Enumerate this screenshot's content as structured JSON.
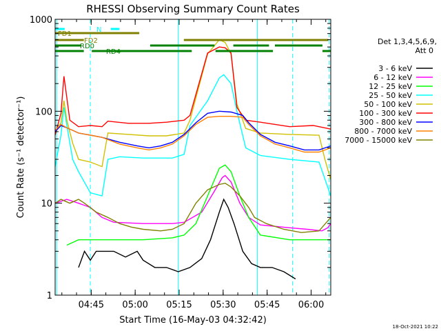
{
  "chart_data": {
    "type": "line",
    "title": "RHESSI Observing Summary Count Rates",
    "xlabel": "Start Time (16-May-03 04:32:42)",
    "ylabel": "Count Rate (s⁻¹ detector⁻¹)",
    "y_scale": "log",
    "ylim": [
      1,
      1000
    ],
    "xlim_minutes": [
      0,
      94
    ],
    "x_ticks": [
      {
        "m": 12.3,
        "label": "04:45"
      },
      {
        "m": 27.3,
        "label": "05:00"
      },
      {
        "m": 42.3,
        "label": "05:15"
      },
      {
        "m": 57.3,
        "label": "05:30"
      },
      {
        "m": 72.3,
        "label": "05:45"
      },
      {
        "m": 87.3,
        "label": "06:00"
      }
    ],
    "y_ticks": [
      {
        "v": 1,
        "label": "1"
      },
      {
        "v": 10,
        "label": "10"
      },
      {
        "v": 100,
        "label": "100"
      },
      {
        "v": 1000,
        "label": "1000"
      }
    ],
    "legend_title": [
      "Det 1,3,4,5,6,9,",
      "Att 0"
    ],
    "legend_position": "right",
    "timestamp": "18-Oct-2021 10:22",
    "colors": {
      "axis": "#000000",
      "night": "#00ffff",
      "flag_N": "#00ffff",
      "flag_FD": "#808000",
      "flag_RD": "#008000"
    },
    "series": [
      {
        "name": "3 - 6 keV",
        "color": "#000000",
        "points": [
          [
            8,
            2
          ],
          [
            10,
            3
          ],
          [
            12,
            2.4
          ],
          [
            14,
            3
          ],
          [
            20,
            3
          ],
          [
            24,
            2.6
          ],
          [
            28,
            3
          ],
          [
            30,
            2.4
          ],
          [
            34,
            2
          ],
          [
            38,
            2
          ],
          [
            42,
            1.8
          ],
          [
            46,
            2
          ],
          [
            50,
            2.5
          ],
          [
            53,
            4
          ],
          [
            56,
            8
          ],
          [
            57.5,
            11
          ],
          [
            59,
            9
          ],
          [
            61,
            6
          ],
          [
            64,
            3
          ],
          [
            67,
            2.2
          ],
          [
            70,
            2
          ],
          [
            74,
            2
          ],
          [
            78,
            1.8
          ],
          [
            82,
            1.5
          ]
        ]
      },
      {
        "name": "6 - 12 keV",
        "color": "#ff00ff",
        "points": [
          [
            0,
            10
          ],
          [
            4,
            11
          ],
          [
            8,
            10
          ],
          [
            12,
            9
          ],
          [
            16,
            7
          ],
          [
            20,
            6.2
          ],
          [
            30,
            6
          ],
          [
            40,
            6
          ],
          [
            44,
            6.2
          ],
          [
            50,
            8
          ],
          [
            54,
            13
          ],
          [
            57,
            19
          ],
          [
            58,
            20
          ],
          [
            60,
            17
          ],
          [
            63,
            10
          ],
          [
            66,
            7
          ],
          [
            70,
            5.8
          ],
          [
            80,
            5.4
          ],
          [
            86,
            5.2
          ],
          [
            91,
            5
          ],
          [
            93,
            5.4
          ],
          [
            94,
            6
          ]
        ]
      },
      {
        "name": "12 - 25 keV",
        "color": "#00ff00",
        "points": [
          [
            4,
            3.5
          ],
          [
            8,
            4
          ],
          [
            12,
            4
          ],
          [
            20,
            4
          ],
          [
            30,
            4
          ],
          [
            40,
            4.2
          ],
          [
            44,
            4.5
          ],
          [
            48,
            6
          ],
          [
            52,
            12
          ],
          [
            56,
            24
          ],
          [
            58,
            26
          ],
          [
            60,
            22
          ],
          [
            63,
            12
          ],
          [
            66,
            7
          ],
          [
            70,
            4.5
          ],
          [
            80,
            4
          ],
          [
            90,
            4
          ],
          [
            94,
            4
          ]
        ]
      },
      {
        "name": "25 - 50 keV",
        "color": "#00ffff",
        "points": [
          [
            0,
            25
          ],
          [
            2,
            55
          ],
          [
            3,
            110
          ],
          [
            4,
            70
          ],
          [
            6,
            30
          ],
          [
            8,
            22
          ],
          [
            12,
            13
          ],
          [
            16,
            12
          ],
          [
            18,
            30
          ],
          [
            22,
            32
          ],
          [
            30,
            31
          ],
          [
            40,
            31
          ],
          [
            44,
            34
          ],
          [
            46,
            70
          ],
          [
            52,
            130
          ],
          [
            56,
            230
          ],
          [
            57.5,
            250
          ],
          [
            60,
            200
          ],
          [
            62,
            100
          ],
          [
            65,
            40
          ],
          [
            70,
            33
          ],
          [
            80,
            30
          ],
          [
            90,
            28
          ],
          [
            94,
            12
          ]
        ]
      },
      {
        "name": "50 - 100 keV",
        "color": "#d0c000",
        "points": [
          [
            0,
            58
          ],
          [
            2,
            75
          ],
          [
            3,
            130
          ],
          [
            4,
            80
          ],
          [
            6,
            45
          ],
          [
            8,
            30
          ],
          [
            12,
            28
          ],
          [
            16,
            25
          ],
          [
            18,
            58
          ],
          [
            25,
            56
          ],
          [
            32,
            54
          ],
          [
            38,
            54
          ],
          [
            44,
            58
          ],
          [
            46,
            80
          ],
          [
            52,
            420
          ],
          [
            56,
            600
          ],
          [
            58,
            560
          ],
          [
            60,
            420
          ],
          [
            62,
            120
          ],
          [
            65,
            65
          ],
          [
            70,
            58
          ],
          [
            80,
            56
          ],
          [
            90,
            55
          ],
          [
            92,
            30
          ],
          [
            94,
            18
          ]
        ]
      },
      {
        "name": "100 - 300 keV",
        "color": "#ff0000",
        "points": [
          [
            0,
            55
          ],
          [
            2,
            95
          ],
          [
            3,
            240
          ],
          [
            4,
            140
          ],
          [
            5,
            80
          ],
          [
            8,
            68
          ],
          [
            12,
            70
          ],
          [
            16,
            68
          ],
          [
            18,
            78
          ],
          [
            25,
            74
          ],
          [
            32,
            74
          ],
          [
            38,
            76
          ],
          [
            44,
            80
          ],
          [
            46,
            90
          ],
          [
            52,
            430
          ],
          [
            56,
            500
          ],
          [
            58,
            490
          ],
          [
            60,
            430
          ],
          [
            62,
            110
          ],
          [
            65,
            80
          ],
          [
            70,
            76
          ],
          [
            80,
            68
          ],
          [
            88,
            70
          ],
          [
            92,
            66
          ],
          [
            94,
            64
          ]
        ]
      },
      {
        "name": "300 - 800 keV",
        "color": "#0000ff",
        "points": [
          [
            0,
            60
          ],
          [
            2,
            70
          ],
          [
            4,
            66
          ],
          [
            6,
            62
          ],
          [
            8,
            58
          ],
          [
            12,
            55
          ],
          [
            16,
            52
          ],
          [
            22,
            46
          ],
          [
            28,
            42
          ],
          [
            32,
            40
          ],
          [
            36,
            42
          ],
          [
            40,
            46
          ],
          [
            44,
            56
          ],
          [
            48,
            75
          ],
          [
            52,
            95
          ],
          [
            56,
            100
          ],
          [
            60,
            98
          ],
          [
            64,
            90
          ],
          [
            66,
            75
          ],
          [
            70,
            56
          ],
          [
            75,
            46
          ],
          [
            80,
            42
          ],
          [
            85,
            38
          ],
          [
            90,
            38
          ],
          [
            94,
            42
          ]
        ]
      },
      {
        "name": "800 - 7000 keV",
        "color": "#ff8000",
        "points": [
          [
            0,
            62
          ],
          [
            2,
            72
          ],
          [
            4,
            66
          ],
          [
            6,
            62
          ],
          [
            8,
            58
          ],
          [
            12,
            55
          ],
          [
            16,
            52
          ],
          [
            22,
            44
          ],
          [
            28,
            40
          ],
          [
            32,
            38
          ],
          [
            36,
            40
          ],
          [
            40,
            44
          ],
          [
            44,
            54
          ],
          [
            48,
            72
          ],
          [
            52,
            86
          ],
          [
            56,
            88
          ],
          [
            60,
            88
          ],
          [
            64,
            86
          ],
          [
            66,
            72
          ],
          [
            70,
            54
          ],
          [
            75,
            44
          ],
          [
            80,
            40
          ],
          [
            85,
            36
          ],
          [
            90,
            36
          ],
          [
            94,
            40
          ]
        ]
      },
      {
        "name": "7000 - 15000 keV",
        "color": "#808000",
        "points": [
          [
            0,
            10
          ],
          [
            2,
            11
          ],
          [
            5,
            10
          ],
          [
            8,
            11
          ],
          [
            10,
            10
          ],
          [
            14,
            8
          ],
          [
            18,
            7
          ],
          [
            22,
            6
          ],
          [
            26,
            5.5
          ],
          [
            30,
            5.2
          ],
          [
            36,
            5
          ],
          [
            40,
            5.2
          ],
          [
            44,
            6
          ],
          [
            48,
            10
          ],
          [
            52,
            14
          ],
          [
            56,
            16
          ],
          [
            58,
            16.5
          ],
          [
            60,
            15
          ],
          [
            63,
            12
          ],
          [
            66,
            9
          ],
          [
            68,
            7
          ],
          [
            72,
            6
          ],
          [
            78,
            5.2
          ],
          [
            84,
            4.8
          ],
          [
            90,
            5
          ],
          [
            94,
            7
          ]
        ]
      }
    ],
    "flags": [
      {
        "label": "N",
        "color": "#00ffff",
        "y": 42,
        "segments": [
          [
            0,
            16
          ],
          [
            93.7,
            108.3
          ]
        ]
      },
      {
        "label": "FD1",
        "color": "#808000",
        "y": 48,
        "segments": [
          [
            0,
            141.7
          ]
        ]
      },
      {
        "label": "FD2",
        "color": "#808000",
        "y": 58,
        "segments": [
          [
            0,
            48.3
          ],
          [
            216.7,
            460
          ]
        ]
      },
      {
        "label": "RD0",
        "color": "#008000",
        "y": 66,
        "segments": [
          [
            0,
            43.3
          ],
          [
            160,
            268.3
          ],
          [
            300,
            360
          ],
          [
            370,
            450
          ]
        ]
      },
      {
        "label": "RD4",
        "color": "#008000",
        "y": 74,
        "segments": [
          [
            0,
            48.3
          ],
          [
            61.7,
            230
          ],
          [
            270,
            366.7
          ],
          [
            450,
            464
          ]
        ]
      }
    ],
    "night_boundaries": [
      {
        "m": 0.5,
        "dashed": false
      },
      {
        "m": 12,
        "dashed": true
      },
      {
        "m": 42,
        "dashed": false
      },
      {
        "m": 69,
        "dashed": false
      },
      {
        "m": 81,
        "dashed": true
      },
      {
        "m": 93.5,
        "dashed": true
      }
    ]
  }
}
